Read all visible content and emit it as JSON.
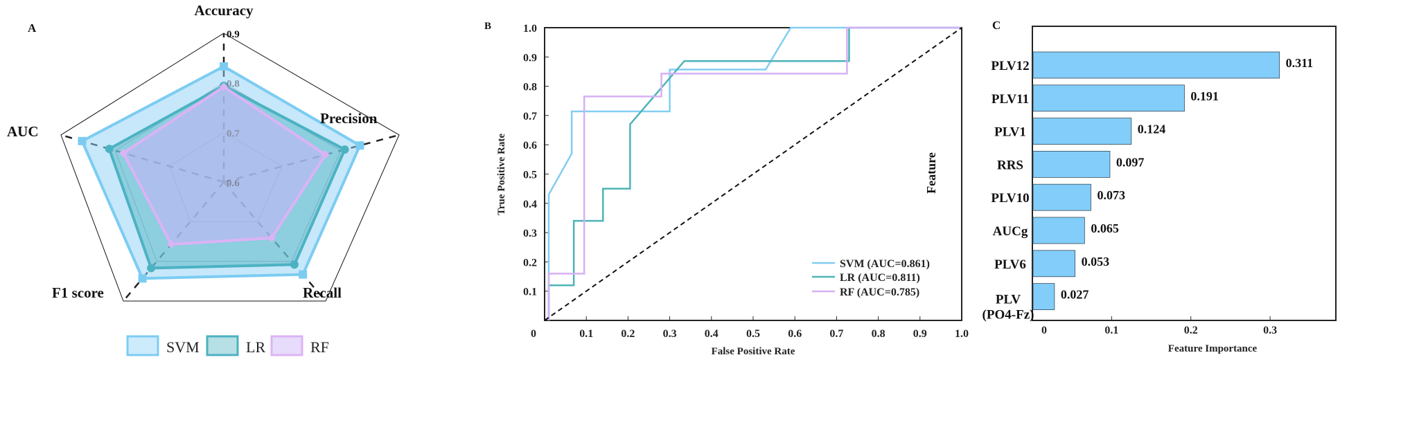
{
  "panels": {
    "a": "A",
    "b": "B",
    "c": "C"
  },
  "chart_data": [
    {
      "type": "radar",
      "panel": "A",
      "axes": [
        "Accuracy",
        "Precision",
        "Recall",
        "F1 score",
        "AUC"
      ],
      "rlim": [
        0.6,
        0.9
      ],
      "ticks": [
        "0.6",
        "0.7",
        "0.8",
        "0.9"
      ],
      "legend_position": "bottom",
      "series": [
        {
          "name": "SVM",
          "values": [
            0.833,
            0.833,
            0.833,
            0.843,
            0.861
          ],
          "stroke": "#7cccf2",
          "fill": "#8ed2f6"
        },
        {
          "name": "LR",
          "values": [
            0.794,
            0.807,
            0.808,
            0.817,
            0.811
          ],
          "stroke": "#4cb2c2",
          "fill": "#5fb8c8"
        },
        {
          "name": "RF",
          "values": [
            0.792,
            0.774,
            0.741,
            0.757,
            0.785
          ],
          "stroke": "#dbb3f5",
          "fill": "#c9b2f6"
        }
      ]
    },
    {
      "type": "line",
      "panel": "B",
      "xlabel": "False Positive Rate",
      "ylabel": "True Positive Rate",
      "xlim": [
        0,
        1
      ],
      "ylim": [
        0,
        1
      ],
      "xticks": [
        "0.1",
        "0.2",
        "0.3",
        "0.4",
        "0.5",
        "0.6",
        "0.7",
        "0.8",
        "0.9",
        "1.0"
      ],
      "yticks": [
        "0.1",
        "0.2",
        "0.3",
        "0.4",
        "0.5",
        "0.6",
        "0.7",
        "0.8",
        "0.9",
        "1.0"
      ],
      "origin_label": "0",
      "legend_position": "bottom-right",
      "series": [
        {
          "name": "SVM",
          "legend": "SVM  (AUC=0.861)",
          "color": "#82cdf2",
          "x": [
            0.01,
            0.01,
            0.065,
            0.065,
            0.3,
            0.3,
            0.53,
            0.59,
            1.0
          ],
          "y": [
            0,
            0.43,
            0.57,
            0.714,
            0.714,
            0.857,
            0.857,
            1.0,
            1.0
          ]
        },
        {
          "name": "LR",
          "legend": "LR (AUC=0.811)",
          "color": "#4db3b8",
          "x": [
            0.01,
            0.01,
            0.07,
            0.07,
            0.14,
            0.14,
            0.205,
            0.205,
            0.335,
            0.73,
            0.73,
            1.0
          ],
          "y": [
            0,
            0.12,
            0.12,
            0.34,
            0.34,
            0.45,
            0.45,
            0.67,
            0.886,
            0.886,
            1.0,
            1.0
          ]
        },
        {
          "name": "RF",
          "legend": "RF (AUC=0.785)",
          "color": "#d6b0f3",
          "x": [
            0.01,
            0.01,
            0.095,
            0.095,
            0.28,
            0.28,
            0.725,
            0.725,
            1.0
          ],
          "y": [
            0,
            0.16,
            0.16,
            0.765,
            0.765,
            0.843,
            0.843,
            1.0,
            1.0
          ]
        },
        {
          "name": "chance",
          "color": "#111111",
          "dashed": true,
          "x": [
            0,
            1
          ],
          "y": [
            0,
            1
          ]
        }
      ]
    },
    {
      "type": "bar",
      "orientation": "horizontal",
      "panel": "C",
      "xlabel": "Feature Importance",
      "ylabel": "Feature",
      "xlim": [
        0,
        0.383
      ],
      "xticks": [
        "0",
        "0.1",
        "0.2",
        "0.3"
      ],
      "categories": [
        "PLV12",
        "PLV11",
        "PLV1",
        "RRS",
        "PLV10",
        "AUCg",
        "PLV6",
        "PLV\n(PO4-Fz)"
      ],
      "values": [
        0.311,
        0.191,
        0.124,
        0.097,
        0.073,
        0.065,
        0.053,
        0.027
      ],
      "labels": [
        "0.311",
        "0.191",
        "0.124",
        "0.097",
        "0.073",
        "0.065",
        "0.053",
        "0.027"
      ],
      "color": "#82cdfa"
    }
  ]
}
